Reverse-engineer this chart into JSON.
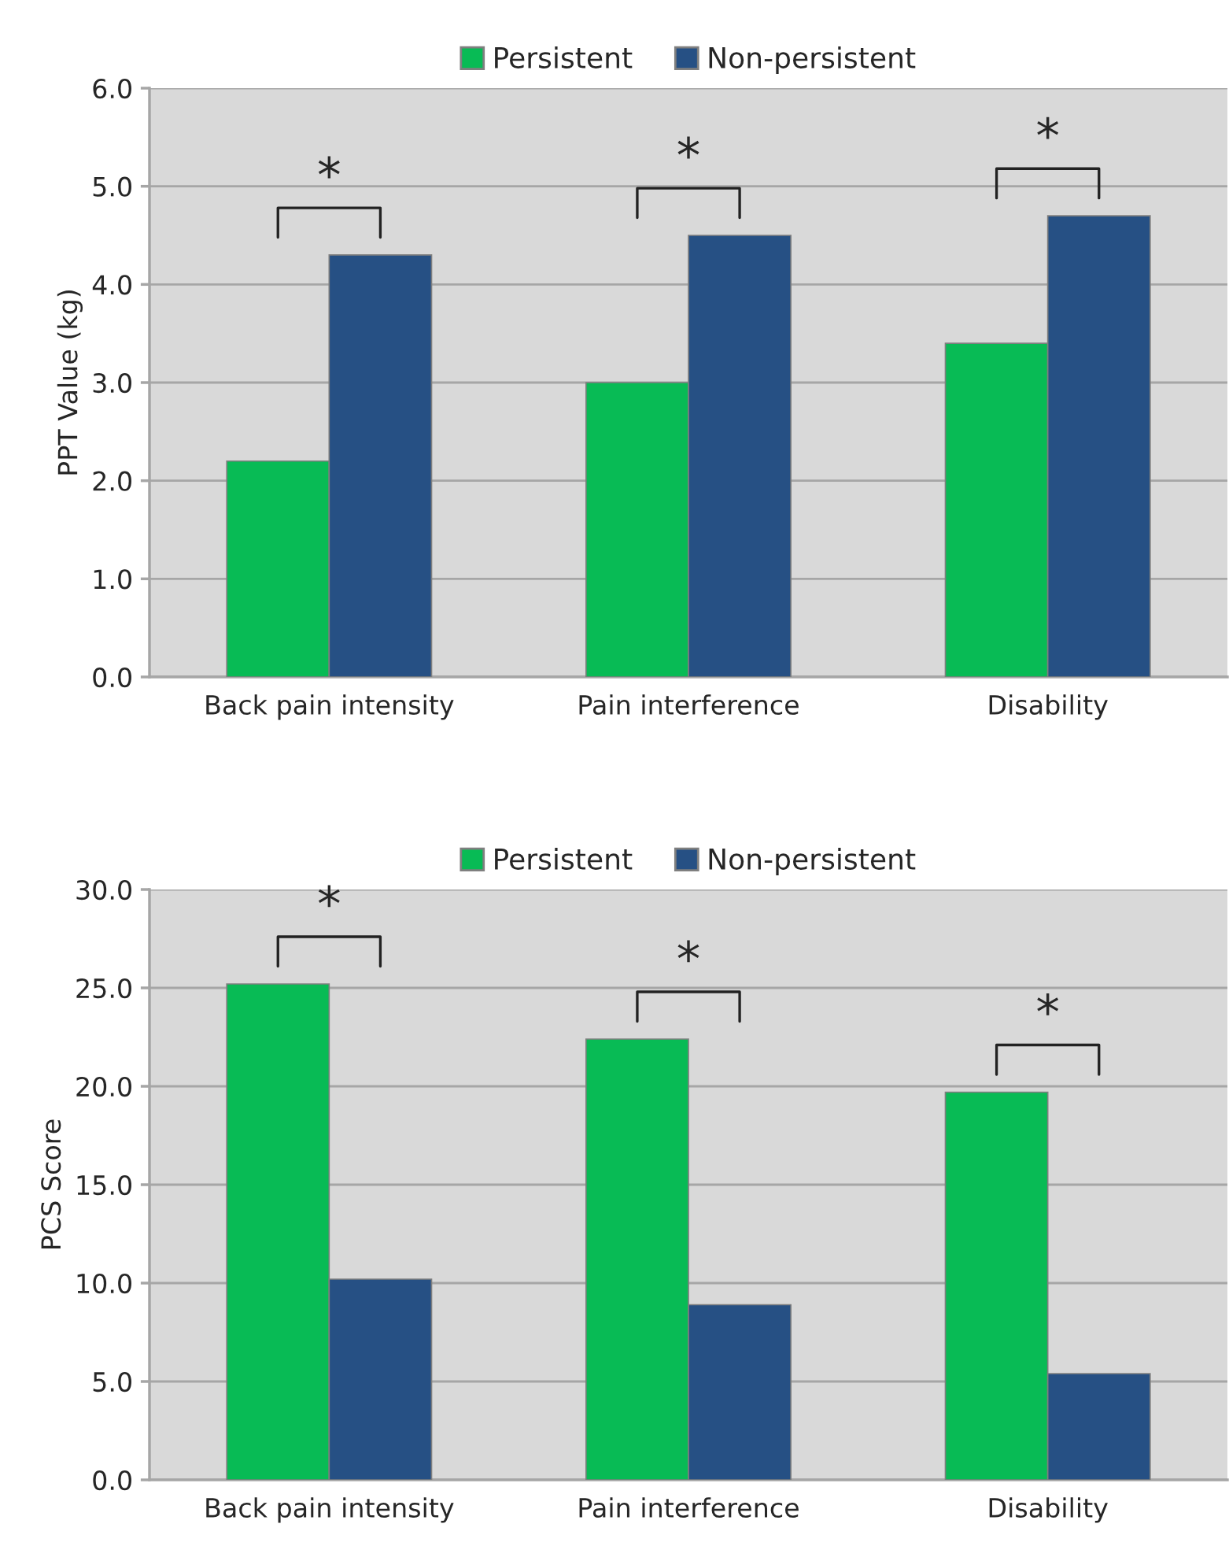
{
  "chart_data": [
    {
      "type": "bar",
      "ylabel": "PPT Value (kg)",
      "categories": [
        "Back pain intensity",
        "Pain interference",
        "Disability"
      ],
      "series": [
        {
          "name": "Persistent",
          "color": "#08bb55",
          "values": [
            2.2,
            3.0,
            3.4
          ]
        },
        {
          "name": "Non-persistent",
          "color": "#265084",
          "values": [
            4.3,
            4.5,
            4.7
          ]
        }
      ],
      "ylim": [
        0,
        6
      ],
      "yticks": [
        {
          "value": 0,
          "label": "0.0"
        },
        {
          "value": 1,
          "label": "1.0"
        },
        {
          "value": 2,
          "label": "2.0"
        },
        {
          "value": 3,
          "label": "3.0"
        },
        {
          "value": 4,
          "label": "4.0"
        },
        {
          "value": 5,
          "label": "5.0"
        },
        {
          "value": 6,
          "label": "6.0"
        }
      ],
      "grid": "y",
      "legend": "top",
      "annotations": [
        "*",
        "*",
        "*"
      ]
    },
    {
      "type": "bar",
      "ylabel": "PCS Score",
      "categories": [
        "Back pain intensity",
        "Pain interference",
        "Disability"
      ],
      "series": [
        {
          "name": "Persistent",
          "color": "#08bb55",
          "values": [
            25.2,
            22.4,
            19.7
          ]
        },
        {
          "name": "Non-persistent",
          "color": "#265084",
          "values": [
            10.2,
            8.9,
            5.4
          ]
        }
      ],
      "ylim": [
        0,
        30
      ],
      "yticks": [
        {
          "value": 0,
          "label": "0.0"
        },
        {
          "value": 5,
          "label": "5.0"
        },
        {
          "value": 10,
          "label": "10.0"
        },
        {
          "value": 15,
          "label": "15.0"
        },
        {
          "value": 20,
          "label": "20.0"
        },
        {
          "value": 25,
          "label": "25.0"
        },
        {
          "value": 30,
          "label": "30.0"
        }
      ],
      "grid": "y",
      "legend": "top",
      "annotations": [
        "*",
        "*",
        "*"
      ]
    }
  ]
}
